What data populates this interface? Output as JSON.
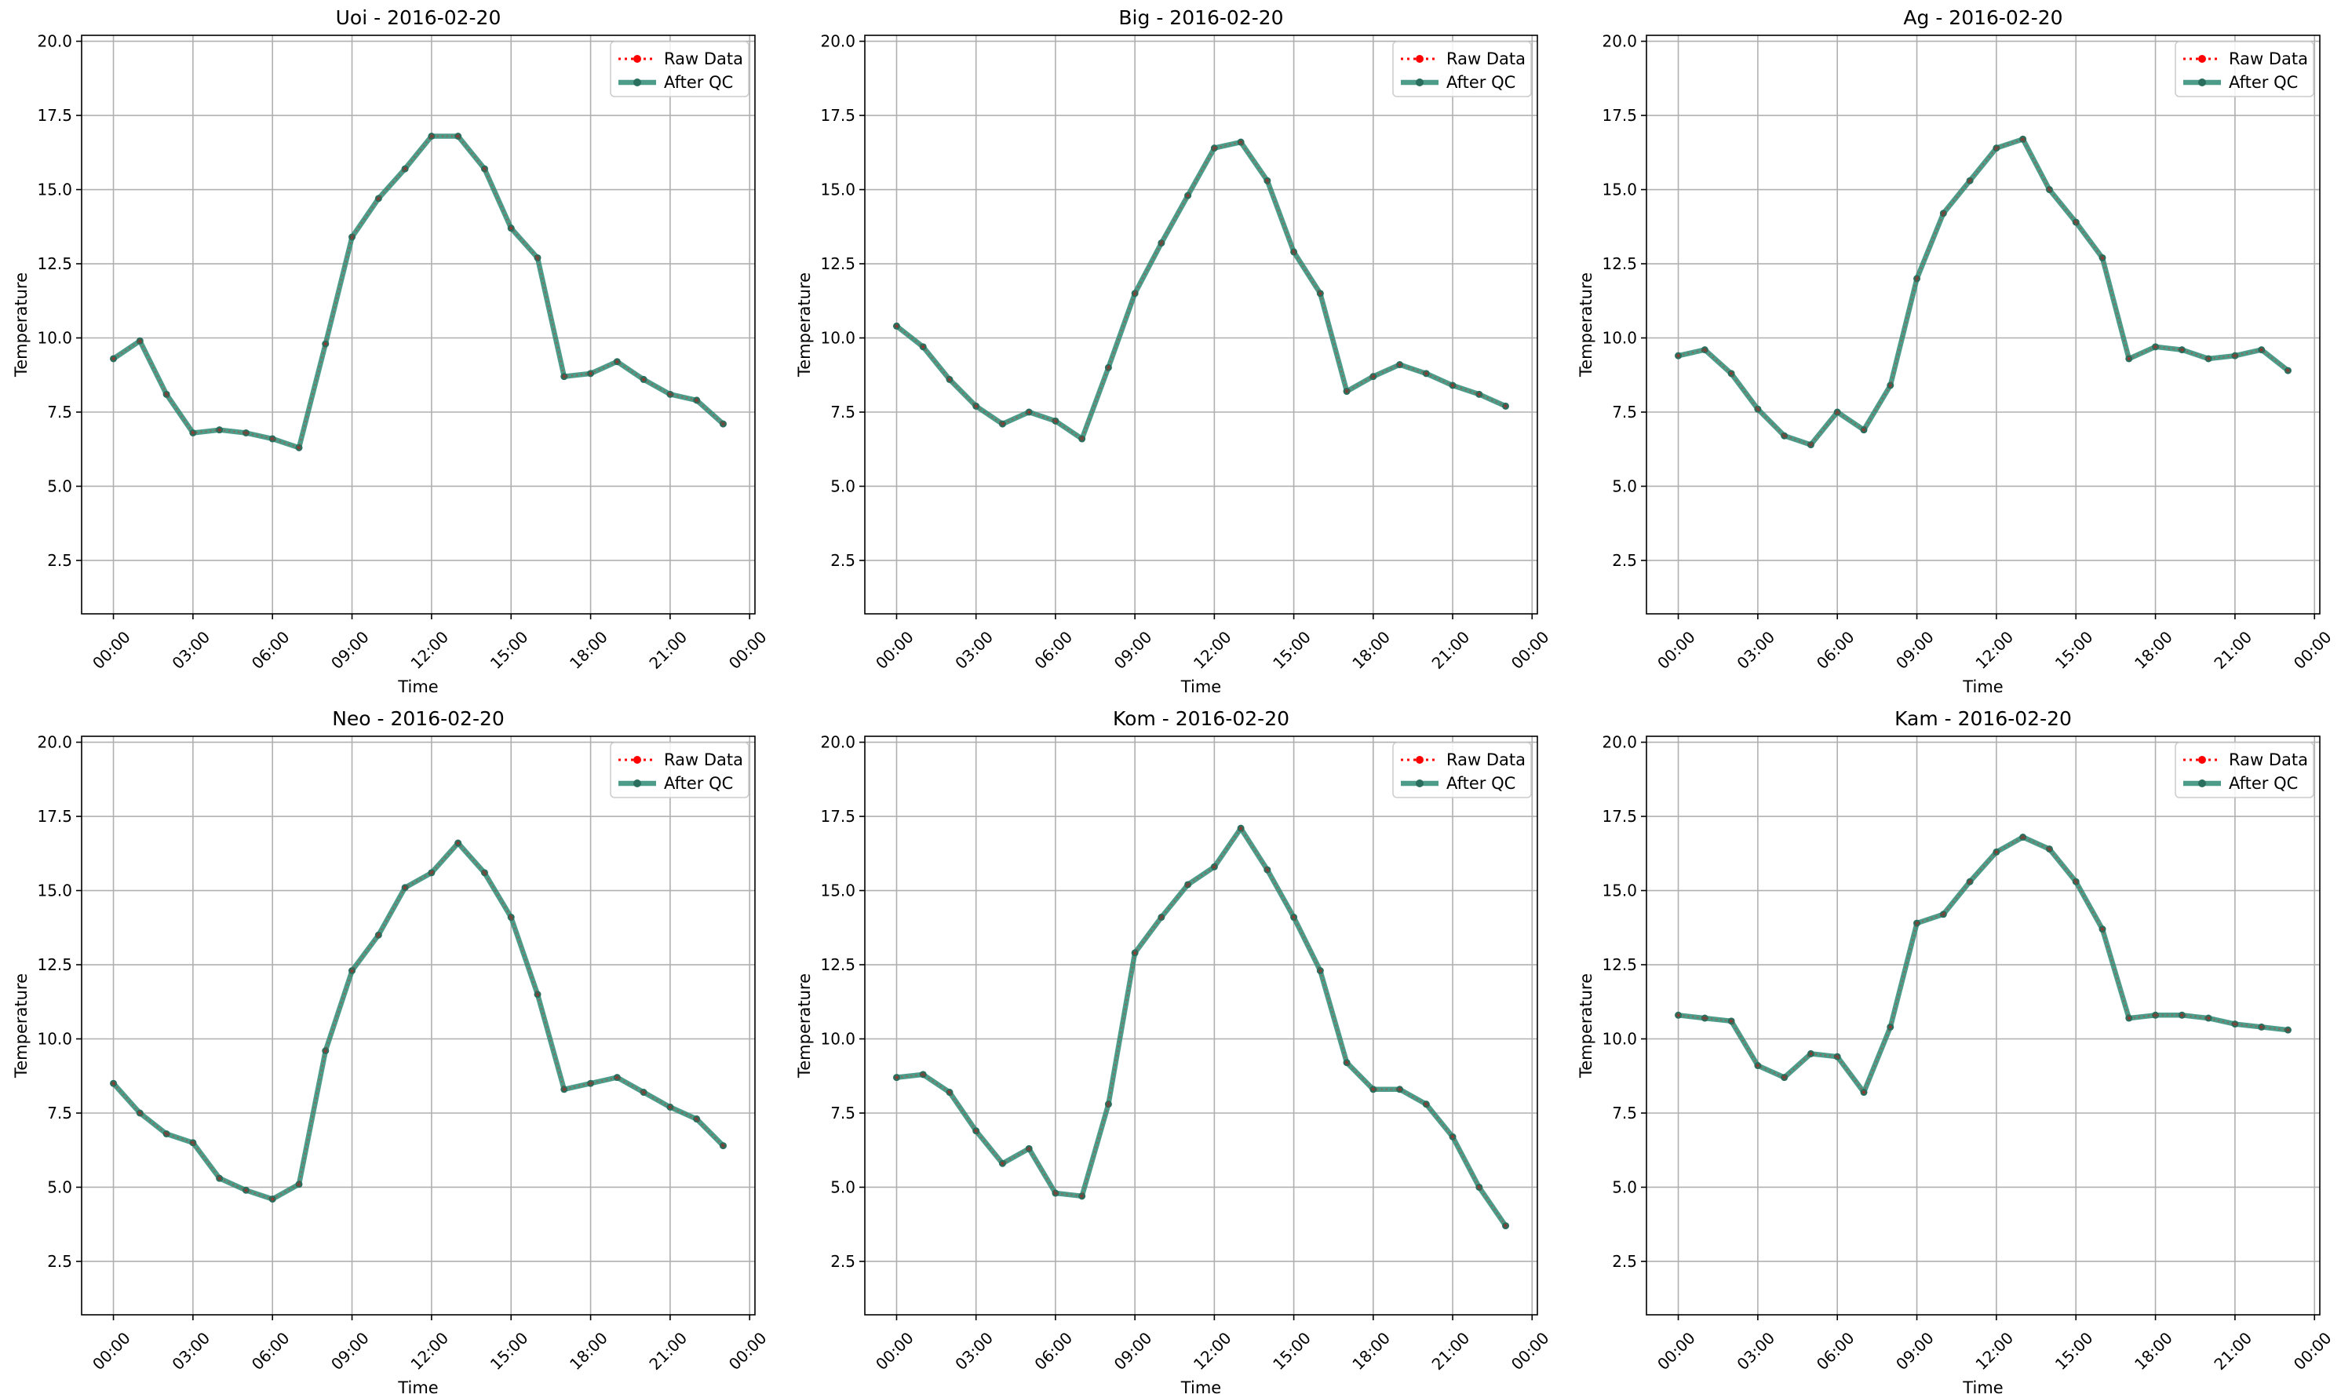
{
  "figure": {
    "background": "#ffffff"
  },
  "colors": {
    "raw": "#ff0000",
    "qc": "#2e8b74",
    "qc_marker": "#2a6e5e",
    "grid": "#b0b0b0",
    "frame": "#000000"
  },
  "chart_data": [
    {
      "type": "line",
      "title": "Uoi - 2016-02-20",
      "xlabel": "Time",
      "ylabel": "Temperature",
      "x_ticks": [
        "00:00",
        "03:00",
        "06:00",
        "09:00",
        "12:00",
        "15:00",
        "18:00",
        "21:00",
        "00:00"
      ],
      "y_ticks": [
        "2.5",
        "5.0",
        "7.5",
        "10.0",
        "12.5",
        "15.0",
        "17.5",
        "20.0"
      ],
      "xlim": [
        -1.2,
        24.2
      ],
      "ylim": [
        0.7,
        20.2
      ],
      "grid": true,
      "legend_position": "upper right",
      "x": [
        0,
        1,
        2,
        3,
        4,
        5,
        6,
        7,
        8,
        9,
        10,
        11,
        12,
        13,
        14,
        15,
        16,
        17,
        18,
        19,
        20,
        21,
        22,
        23
      ],
      "series": [
        {
          "name": "Raw Data",
          "values": [
            9.3,
            9.9,
            8.1,
            6.8,
            6.9,
            6.8,
            6.6,
            6.3,
            9.8,
            13.4,
            14.7,
            15.7,
            16.8,
            16.8,
            15.7,
            13.7,
            12.7,
            8.7,
            8.8,
            9.2,
            8.6,
            8.1,
            7.9,
            7.1
          ]
        },
        {
          "name": "After QC",
          "values": [
            9.3,
            9.9,
            8.1,
            6.8,
            6.9,
            6.8,
            6.6,
            6.3,
            9.8,
            13.4,
            14.7,
            15.7,
            16.8,
            16.8,
            15.7,
            13.7,
            12.7,
            8.7,
            8.8,
            9.2,
            8.6,
            8.1,
            7.9,
            7.1
          ]
        }
      ]
    },
    {
      "type": "line",
      "title": "Big - 2016-02-20",
      "xlabel": "Time",
      "ylabel": "Temperature",
      "x_ticks": [
        "00:00",
        "03:00",
        "06:00",
        "09:00",
        "12:00",
        "15:00",
        "18:00",
        "21:00",
        "00:00"
      ],
      "y_ticks": [
        "2.5",
        "5.0",
        "7.5",
        "10.0",
        "12.5",
        "15.0",
        "17.5",
        "20.0"
      ],
      "xlim": [
        -1.2,
        24.2
      ],
      "ylim": [
        0.7,
        20.2
      ],
      "grid": true,
      "legend_position": "upper right",
      "x": [
        0,
        1,
        2,
        3,
        4,
        5,
        6,
        7,
        8,
        9,
        10,
        11,
        12,
        13,
        14,
        15,
        16,
        17,
        18,
        19,
        20,
        21,
        22,
        23
      ],
      "series": [
        {
          "name": "Raw Data",
          "values": [
            10.4,
            9.7,
            8.6,
            7.7,
            7.1,
            7.5,
            7.2,
            6.6,
            9.0,
            11.5,
            13.2,
            14.8,
            16.4,
            16.6,
            15.3,
            12.9,
            11.5,
            8.2,
            8.7,
            9.1,
            8.8,
            8.4,
            8.1,
            7.7
          ]
        },
        {
          "name": "After QC",
          "values": [
            10.4,
            9.7,
            8.6,
            7.7,
            7.1,
            7.5,
            7.2,
            6.6,
            9.0,
            11.5,
            13.2,
            14.8,
            16.4,
            16.6,
            15.3,
            12.9,
            11.5,
            8.2,
            8.7,
            9.1,
            8.8,
            8.4,
            8.1,
            7.7
          ]
        }
      ]
    },
    {
      "type": "line",
      "title": "Ag - 2016-02-20",
      "xlabel": "Time",
      "ylabel": "Temperature",
      "x_ticks": [
        "00:00",
        "03:00",
        "06:00",
        "09:00",
        "12:00",
        "15:00",
        "18:00",
        "21:00",
        "00:00"
      ],
      "y_ticks": [
        "2.5",
        "5.0",
        "7.5",
        "10.0",
        "12.5",
        "15.0",
        "17.5",
        "20.0"
      ],
      "xlim": [
        -1.2,
        24.2
      ],
      "ylim": [
        0.7,
        20.2
      ],
      "grid": true,
      "legend_position": "upper right",
      "x": [
        0,
        1,
        2,
        3,
        4,
        5,
        6,
        7,
        8,
        9,
        10,
        11,
        12,
        13,
        14,
        15,
        16,
        17,
        18,
        19,
        20,
        21,
        22,
        23
      ],
      "series": [
        {
          "name": "Raw Data",
          "values": [
            9.4,
            9.6,
            8.8,
            7.6,
            6.7,
            6.4,
            7.5,
            6.9,
            8.4,
            12.0,
            14.2,
            15.3,
            16.4,
            16.7,
            15.0,
            13.9,
            12.7,
            9.3,
            9.7,
            9.6,
            9.3,
            9.4,
            9.6,
            8.9
          ]
        },
        {
          "name": "After QC",
          "values": [
            9.4,
            9.6,
            8.8,
            7.6,
            6.7,
            6.4,
            7.5,
            6.9,
            8.4,
            12.0,
            14.2,
            15.3,
            16.4,
            16.7,
            15.0,
            13.9,
            12.7,
            9.3,
            9.7,
            9.6,
            9.3,
            9.4,
            9.6,
            8.9
          ]
        }
      ]
    },
    {
      "type": "line",
      "title": "Neo - 2016-02-20",
      "xlabel": "Time",
      "ylabel": "Temperature",
      "x_ticks": [
        "00:00",
        "03:00",
        "06:00",
        "09:00",
        "12:00",
        "15:00",
        "18:00",
        "21:00",
        "00:00"
      ],
      "y_ticks": [
        "2.5",
        "5.0",
        "7.5",
        "10.0",
        "12.5",
        "15.0",
        "17.5",
        "20.0"
      ],
      "xlim": [
        -1.2,
        24.2
      ],
      "ylim": [
        0.7,
        20.2
      ],
      "grid": true,
      "legend_position": "upper right",
      "x": [
        0,
        1,
        2,
        3,
        4,
        5,
        6,
        7,
        8,
        9,
        10,
        11,
        12,
        13,
        14,
        15,
        16,
        17,
        18,
        19,
        20,
        21,
        22,
        23
      ],
      "series": [
        {
          "name": "Raw Data",
          "values": [
            8.5,
            7.5,
            6.8,
            6.5,
            5.3,
            4.9,
            4.6,
            5.1,
            9.6,
            12.3,
            13.5,
            15.1,
            15.6,
            16.6,
            15.6,
            14.1,
            11.5,
            8.3,
            8.5,
            8.7,
            8.2,
            7.7,
            7.3,
            6.4
          ]
        },
        {
          "name": "After QC",
          "values": [
            8.5,
            7.5,
            6.8,
            6.5,
            5.3,
            4.9,
            4.6,
            5.1,
            9.6,
            12.3,
            13.5,
            15.1,
            15.6,
            16.6,
            15.6,
            14.1,
            11.5,
            8.3,
            8.5,
            8.7,
            8.2,
            7.7,
            7.3,
            6.4
          ]
        }
      ]
    },
    {
      "type": "line",
      "title": "Kom - 2016-02-20",
      "xlabel": "Time",
      "ylabel": "Temperature",
      "x_ticks": [
        "00:00",
        "03:00",
        "06:00",
        "09:00",
        "12:00",
        "15:00",
        "18:00",
        "21:00",
        "00:00"
      ],
      "y_ticks": [
        "2.5",
        "5.0",
        "7.5",
        "10.0",
        "12.5",
        "15.0",
        "17.5",
        "20.0"
      ],
      "xlim": [
        -1.2,
        24.2
      ],
      "ylim": [
        0.7,
        20.2
      ],
      "grid": true,
      "legend_position": "upper right",
      "x": [
        0,
        1,
        2,
        3,
        4,
        5,
        6,
        7,
        8,
        9,
        10,
        11,
        12,
        13,
        14,
        15,
        16,
        17,
        18,
        19,
        20,
        21,
        22,
        23
      ],
      "series": [
        {
          "name": "Raw Data",
          "values": [
            8.7,
            8.8,
            8.2,
            6.9,
            5.8,
            6.3,
            4.8,
            4.7,
            7.8,
            12.9,
            14.1,
            15.2,
            15.8,
            17.1,
            15.7,
            14.1,
            12.3,
            9.2,
            8.3,
            8.3,
            7.8,
            6.7,
            5.0,
            3.7
          ]
        },
        {
          "name": "After QC",
          "values": [
            8.7,
            8.8,
            8.2,
            6.9,
            5.8,
            6.3,
            4.8,
            4.7,
            7.8,
            12.9,
            14.1,
            15.2,
            15.8,
            17.1,
            15.7,
            14.1,
            12.3,
            9.2,
            8.3,
            8.3,
            7.8,
            6.7,
            5.0,
            3.7
          ]
        }
      ]
    },
    {
      "type": "line",
      "title": "Kam - 2016-02-20",
      "xlabel": "Time",
      "ylabel": "Temperature",
      "x_ticks": [
        "00:00",
        "03:00",
        "06:00",
        "09:00",
        "12:00",
        "15:00",
        "18:00",
        "21:00",
        "00:00"
      ],
      "y_ticks": [
        "2.5",
        "5.0",
        "7.5",
        "10.0",
        "12.5",
        "15.0",
        "17.5",
        "20.0"
      ],
      "xlim": [
        -1.2,
        24.2
      ],
      "ylim": [
        0.7,
        20.2
      ],
      "grid": true,
      "legend_position": "upper right",
      "x": [
        0,
        1,
        2,
        3,
        4,
        5,
        6,
        7,
        8,
        9,
        10,
        11,
        12,
        13,
        14,
        15,
        16,
        17,
        18,
        19,
        20,
        21,
        22,
        23
      ],
      "series": [
        {
          "name": "Raw Data",
          "values": [
            10.8,
            10.7,
            10.6,
            9.1,
            8.7,
            9.5,
            9.4,
            8.2,
            10.4,
            13.9,
            14.2,
            15.3,
            16.3,
            16.8,
            16.4,
            15.3,
            13.7,
            10.7,
            10.8,
            10.8,
            10.7,
            10.5,
            10.4,
            10.3
          ]
        },
        {
          "name": "After QC",
          "values": [
            10.8,
            10.7,
            10.6,
            9.1,
            8.7,
            9.5,
            9.4,
            8.2,
            10.4,
            13.9,
            14.2,
            15.3,
            16.3,
            16.8,
            16.4,
            15.3,
            13.7,
            10.7,
            10.8,
            10.8,
            10.7,
            10.5,
            10.4,
            10.3
          ]
        }
      ]
    }
  ]
}
